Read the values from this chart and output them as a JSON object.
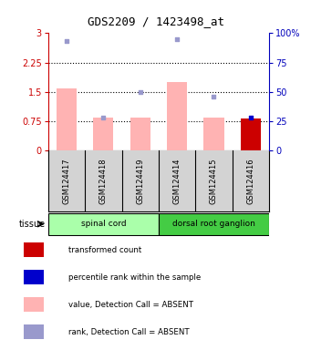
{
  "title": "GDS2209 / 1423498_at",
  "samples": [
    "GSM124417",
    "GSM124418",
    "GSM124419",
    "GSM124414",
    "GSM124415",
    "GSM124416"
  ],
  "bar_values": [
    1.6,
    0.85,
    0.85,
    1.75,
    0.85,
    0.82
  ],
  "bar_color_absent": "#ffb3b3",
  "bar_color_present": "#cc0000",
  "present_index": 5,
  "rank_scatter_y": [
    93,
    28,
    50,
    95,
    46,
    28
  ],
  "rank_scatter_absent": [
    true,
    true,
    true,
    true,
    true,
    false
  ],
  "rank_color_absent": "#9999cc",
  "rank_color_present": "#0000cc",
  "ylim_left": [
    0,
    3
  ],
  "ylim_right": [
    0,
    100
  ],
  "yticks_left": [
    0,
    0.75,
    1.5,
    2.25,
    3
  ],
  "ytick_labels_left": [
    "0",
    "0.75",
    "1.5",
    "2.25",
    "3"
  ],
  "yticks_right": [
    0,
    25,
    50,
    75,
    100
  ],
  "ytick_labels_right": [
    "0",
    "25",
    "50",
    "75",
    "100%"
  ],
  "dotted_lines": [
    0.75,
    1.5,
    2.25
  ],
  "groups": [
    {
      "label": "spinal cord",
      "start": 0,
      "end": 3,
      "color": "#aaffaa"
    },
    {
      "label": "dorsal root ganglion",
      "start": 3,
      "end": 6,
      "color": "#44cc44"
    }
  ],
  "tissue_label": "tissue",
  "legend_items": [
    {
      "label": "transformed count",
      "color": "#cc0000"
    },
    {
      "label": "percentile rank within the sample",
      "color": "#0000cc"
    },
    {
      "label": "value, Detection Call = ABSENT",
      "color": "#ffb3b3"
    },
    {
      "label": "rank, Detection Call = ABSENT",
      "color": "#9999cc"
    }
  ],
  "left_axis_color": "#cc0000",
  "right_axis_color": "#0000bb",
  "bg_color": "#ffffff",
  "xlabels_bg": "#d3d3d3",
  "plot_border_color": "#000000"
}
